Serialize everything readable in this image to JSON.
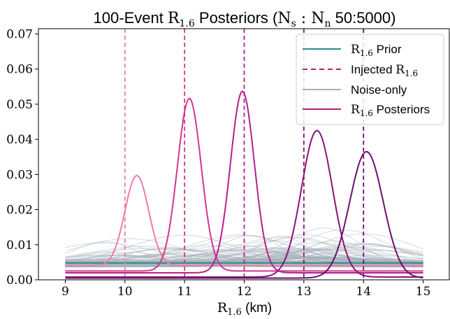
{
  "chart_data": {
    "type": "line",
    "title": {
      "prefix": "100-Event ",
      "r_main": "R",
      "r_sub": "1.6",
      "middle": " Posteriors (",
      "ns_main": "N",
      "ns_sub": "s",
      "colon": " : ",
      "nn_main": "N",
      "nn_sub": "n",
      "suffix": " 50:5000)"
    },
    "xlabel": {
      "main": "R",
      "sub": "1.6",
      "suffix": " (km)"
    },
    "ylabel": "",
    "xlim": [
      8.55,
      15.45
    ],
    "ylim": [
      0,
      0.0715
    ],
    "xticks": [
      9,
      10,
      11,
      12,
      13,
      14,
      15
    ],
    "yticks": [
      "0.00",
      "0.01",
      "0.02",
      "0.03",
      "0.04",
      "0.05",
      "0.06",
      "0.07"
    ],
    "grid": false,
    "legend_position": "top-right",
    "legend": [
      {
        "key": "prior",
        "label_main": "R",
        "label_sub": "1.6",
        "label_suffix": " Prior",
        "color": "#2a8c8c",
        "style": "solid"
      },
      {
        "key": "injected",
        "label_main": "",
        "label_sub": "",
        "label_prefix": "Injected ",
        "label_main2": "R",
        "label_sub2": "1.6",
        "color": "#b0207a",
        "style": "dashed"
      },
      {
        "key": "noise",
        "label_prefix": "Noise-only",
        "color": "#a7b1bb",
        "style": "solid"
      },
      {
        "key": "posteriors",
        "label_main": "R",
        "label_sub": "1.6",
        "label_suffix": " Posteriors",
        "color": "#b0208a",
        "style": "solid"
      }
    ],
    "prior": {
      "x": [
        9,
        15
      ],
      "y": [
        0.0048,
        0.0048
      ],
      "color": "#2a8c8c"
    },
    "injected": [
      {
        "x": 10,
        "color": "#f07aa8"
      },
      {
        "x": 11,
        "color": "#d4358f"
      },
      {
        "x": 12,
        "color": "#b52089"
      },
      {
        "x": 13,
        "color": "#8b1478"
      },
      {
        "x": 14,
        "color": "#6b0f6e"
      }
    ],
    "posteriors": [
      {
        "peak_x": 10.2,
        "peak_y": 0.0297,
        "width": 0.2,
        "baseline": 0.004,
        "color": "#f07aa8"
      },
      {
        "peak_x": 11.08,
        "peak_y": 0.0517,
        "width": 0.2,
        "baseline": 0.0025,
        "color": "#d4358f"
      },
      {
        "peak_x": 11.97,
        "peak_y": 0.0537,
        "width": 0.2,
        "baseline": 0.002,
        "color": "#b52089"
      },
      {
        "peak_x": 13.22,
        "peak_y": 0.0425,
        "width": 0.26,
        "baseline": 0.0008,
        "color": "#8b1478"
      },
      {
        "peak_x": 14.05,
        "peak_y": 0.0365,
        "width": 0.28,
        "baseline": 0.0005,
        "color": "#6b0f6e"
      }
    ],
    "noise_only": {
      "count": 100,
      "color": "#a7b1bb",
      "baseline": 0.0045,
      "spread": 0.0018,
      "peak_max": 0.0135
    }
  }
}
